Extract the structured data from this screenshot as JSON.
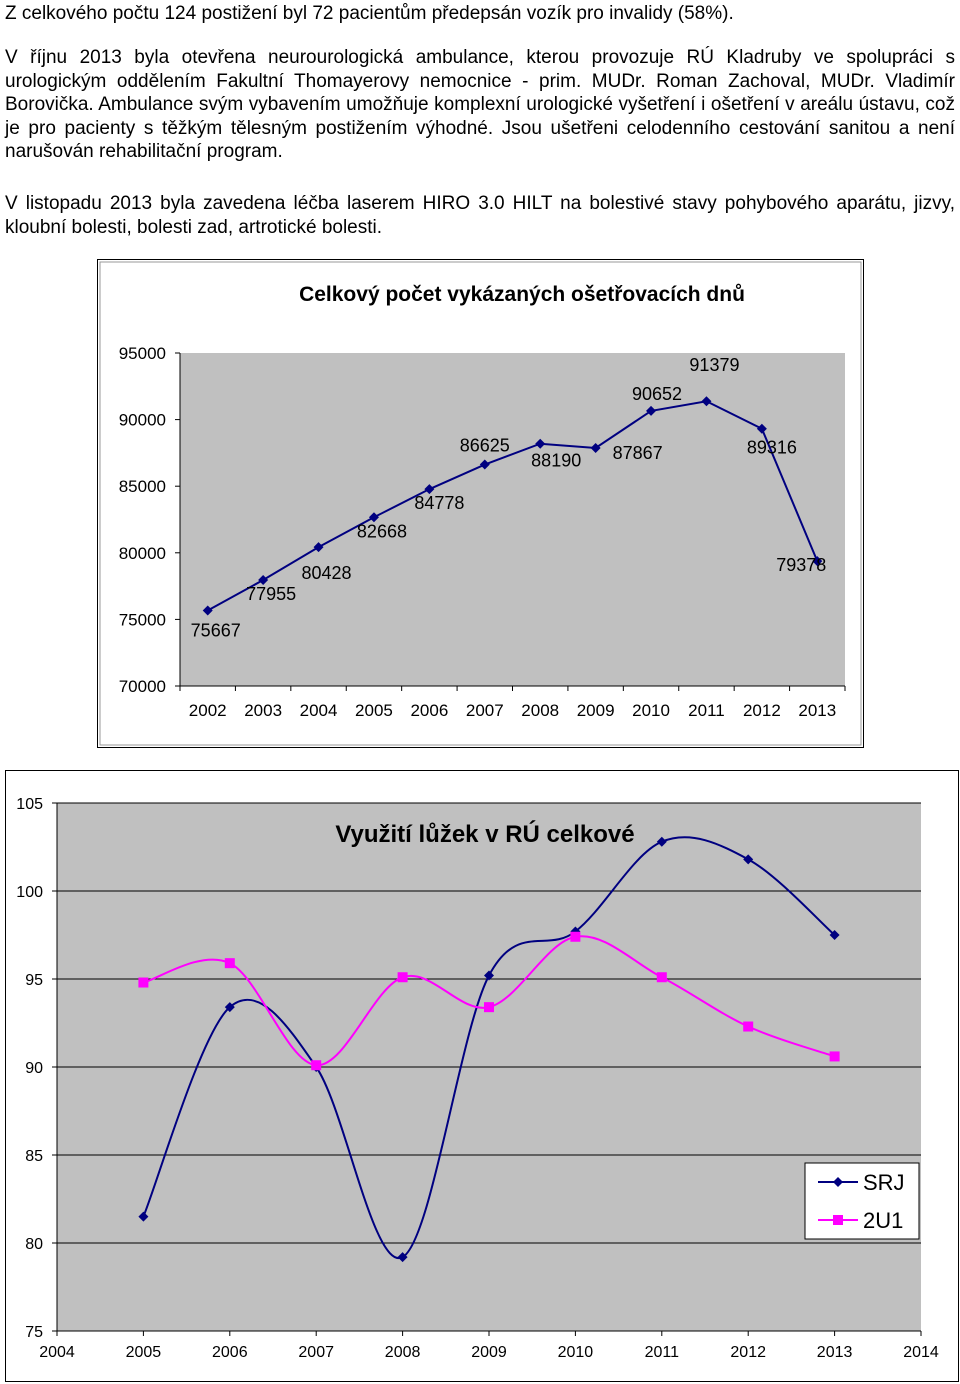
{
  "paragraphs": [
    "Z celkového počtu 124 postižení byl 72 pacientům předepsán vozík pro invalidy (58%).",
    "V říjnu 2013 byla otevřena neurourologická ambulance, kterou provozuje RÚ Kladruby ve spolupráci s urologickým oddělením Fakultní Thomayerovy nemocnice - prim. MUDr. Roman Zachoval, MUDr. Vladimír Borovička. Ambulance svým vybavením umožňuje komplexní urologické vyšetření i ošetření v areálu ústavu, což je pro pacienty s těžkým tělesným postižením výhodné. Jsou ušetřeni celodenního cestování sanitou a není narušován rehabilitační program.",
    "V listopadu 2013 byla zavedena léčba laserem HIRO 3.0 HILT na bolestivé stavy pohybového aparátu, jizvy, kloubní bolesti, bolesti zad, artrotické bolesti."
  ],
  "chart_data": [
    {
      "type": "line",
      "title": "Celkový počet vykázaných ošetřovacích dnů",
      "categories": [
        "2002",
        "2003",
        "2004",
        "2005",
        "2006",
        "2007",
        "2008",
        "2009",
        "2010",
        "2011",
        "2012",
        "2013"
      ],
      "series": [
        {
          "values": [
            75667,
            77955,
            80428,
            82668,
            84778,
            86625,
            88190,
            87867,
            90652,
            91379,
            89316,
            79378
          ],
          "color": "#000080"
        }
      ],
      "data_labels": [
        "75667",
        "77955",
        "80428",
        "82668",
        "84778",
        "86625",
        "88190",
        "87867",
        "90652",
        "91379",
        "89316",
        "79378"
      ],
      "ylim": [
        70000,
        95000
      ],
      "yticks": [
        "70000",
        "75000",
        "80000",
        "85000",
        "90000",
        "95000"
      ],
      "plot_background": "#c0c0c0",
      "grid": false
    },
    {
      "type": "line",
      "title": "Využití lůžek v RÚ celkové",
      "x": [
        2005,
        2006,
        2007,
        2008,
        2009,
        2010,
        2011,
        2012,
        2013
      ],
      "xticks": [
        "2004",
        "2005",
        "2006",
        "2007",
        "2008",
        "2009",
        "2010",
        "2011",
        "2012",
        "2013",
        "2014"
      ],
      "xlim": [
        2004,
        2014
      ],
      "ylim": [
        75,
        105
      ],
      "yticks": [
        "75",
        "80",
        "85",
        "90",
        "95",
        "100",
        "105"
      ],
      "series": [
        {
          "name": "SRJ",
          "values": [
            81.5,
            93.4,
            90.0,
            79.2,
            95.2,
            97.7,
            102.8,
            101.8,
            97.5
          ],
          "color": "#000080",
          "marker": "diamond"
        },
        {
          "name": "2U1",
          "values": [
            94.8,
            95.9,
            90.1,
            95.1,
            93.4,
            97.4,
            95.1,
            92.3,
            90.6
          ],
          "color": "#ff00ff",
          "marker": "square"
        }
      ],
      "legend": "right",
      "plot_background": "#c0c0c0",
      "grid": "horizontal"
    }
  ]
}
